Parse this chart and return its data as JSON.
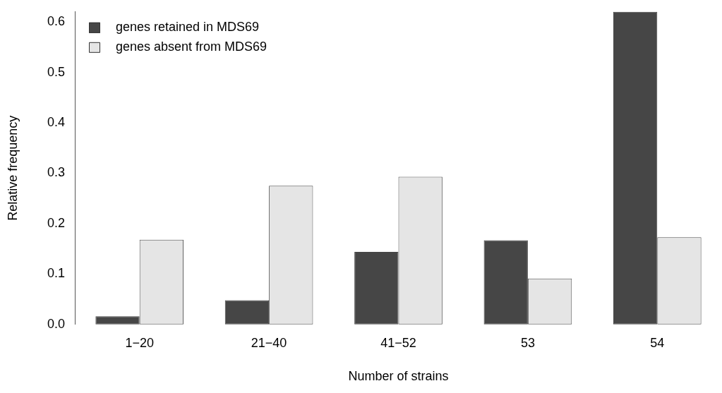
{
  "chart_data": {
    "type": "bar",
    "xlabel": "Number of strains",
    "ylabel": "Relative frequency",
    "categories": [
      "1−20",
      "21−40",
      "41−52",
      "53",
      "54"
    ],
    "series": [
      {
        "name": "genes retained in MDS69",
        "color": "#464646",
        "values": [
          0.016,
          0.048,
          0.144,
          0.167,
          0.62
        ]
      },
      {
        "name": "genes absent from MDS69",
        "color": "#e5e5e5",
        "values": [
          0.168,
          0.275,
          0.293,
          0.091,
          0.173
        ]
      }
    ],
    "ylim": [
      0,
      0.62
    ],
    "yticks": [
      {
        "value": 0,
        "label": "0.0"
      },
      {
        "value": 0.1,
        "label": "0.1"
      },
      {
        "value": 0.2,
        "label": "0.2"
      },
      {
        "value": 0.3,
        "label": "0.3"
      },
      {
        "value": 0.4,
        "label": "0.4"
      },
      {
        "value": 0.5,
        "label": "0.5"
      },
      {
        "value": 0.6,
        "label": "0.6"
      }
    ],
    "grid": false,
    "legend": "top left"
  }
}
